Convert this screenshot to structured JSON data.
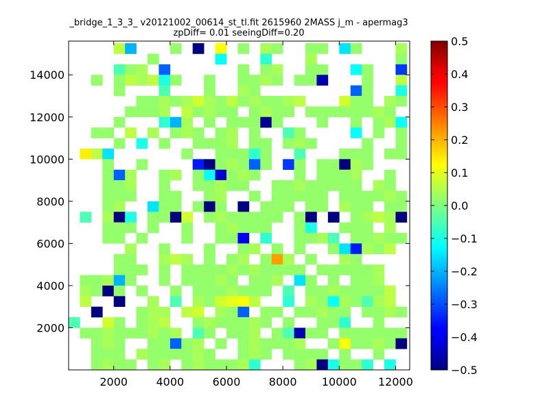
{
  "chart_data": {
    "type": "heatmap",
    "title": "_bridge_1_3_3_ v20121002_00614_st_tl.fit 2615960 2MASS j_m - apermag3",
    "subtitle": "zpDiff= 0.01 seeingDiff=0.20",
    "xlabel": "",
    "ylabel": "",
    "xlim": [
      400,
      12500
    ],
    "ylim": [
      0,
      15600
    ],
    "xticks": [
      2000,
      4000,
      6000,
      8000,
      10000,
      12000
    ],
    "yticks": [
      2000,
      4000,
      6000,
      8000,
      10000,
      12000,
      14000
    ],
    "x_bin_edges": [
      400,
      800,
      1200,
      1600,
      2000,
      2400,
      2800,
      3200,
      3600,
      4000,
      4400,
      4800,
      5200,
      5600,
      6000,
      6400,
      6800,
      7200,
      7600,
      8000,
      8400,
      8800,
      9200,
      9600,
      10000,
      10400,
      10800,
      11200,
      11600,
      12000,
      12400
    ],
    "y_bin_edges": [
      0,
      500,
      1000,
      1500,
      2000,
      2500,
      3000,
      3500,
      4000,
      4500,
      5000,
      5500,
      6000,
      6500,
      7000,
      7500,
      8000,
      8500,
      9000,
      9500,
      10000,
      10500,
      11000,
      11500,
      12000,
      12500,
      13000,
      13500,
      14000,
      14500,
      15000,
      15500
    ],
    "colorbar": {
      "colormap": "jet",
      "vmin": -0.5,
      "vmax": 0.5,
      "ticks": [
        -0.5,
        -0.4,
        -0.3,
        -0.2,
        -0.1,
        0.0,
        0.1,
        0.2,
        0.3,
        0.4,
        0.5
      ],
      "tick_labels": [
        "−0.5",
        "−0.4",
        "−0.3",
        "−0.2",
        "−0.1",
        "0.0",
        "0.1",
        "0.2",
        "0.3",
        "0.4",
        "0.5"
      ]
    },
    "x_tick_labels": [
      "2000",
      "4000",
      "6000",
      "8000",
      "10000",
      "12000"
    ],
    "y_tick_labels": [
      "2000",
      "4000",
      "6000",
      "8000",
      "10000",
      "12000",
      "14000"
    ],
    "grid_rows_note": "rows listed from top (y=15500) to bottom (y=0); 31 columns from x=400 to 12400; null = no data",
    "grid": [
      [
        null,
        null,
        null,
        0.02,
        null,
        null,
        null,
        0.04,
        null,
        null,
        null,
        null,
        0.02,
        null,
        null,
        0.04,
        null,
        null,
        0.02,
        null,
        null,
        0.02,
        null,
        null,
        -0.05,
        null,
        0.02,
        null,
        null,
        0.04,
        null
      ],
      [
        null,
        null,
        null,
        null,
        0.06,
        -0.2,
        null,
        null,
        null,
        0.02,
        null,
        -0.5,
        null,
        0.12,
        null,
        0.02,
        null,
        0.04,
        0.02,
        null,
        null,
        0.02,
        0.02,
        null,
        -0.15,
        0.02,
        null,
        null,
        null,
        0.04,
        0.06
      ],
      [
        null,
        null,
        null,
        null,
        null,
        null,
        null,
        0.02,
        null,
        null,
        null,
        null,
        null,
        -0.12,
        null,
        null,
        null,
        -0.08,
        null,
        null,
        null,
        0.04,
        null,
        null,
        null,
        null,
        null,
        null,
        null,
        0.02,
        null
      ],
      [
        null,
        null,
        null,
        null,
        -0.05,
        0.02,
        0.04,
        null,
        -0.28,
        null,
        null,
        null,
        null,
        null,
        null,
        0.02,
        null,
        0.02,
        0.04,
        null,
        null,
        0.02,
        0.02,
        null,
        null,
        -0.12,
        0.02,
        null,
        null,
        -0.32,
        null
      ],
      [
        null,
        null,
        0.02,
        null,
        0.02,
        0.06,
        0.04,
        0.06,
        -0.1,
        0.02,
        null,
        null,
        0.02,
        null,
        null,
        0.02,
        0.02,
        0.04,
        0.02,
        null,
        0.02,
        0.02,
        -0.45,
        null,
        null,
        null,
        0.02,
        null,
        null,
        0.06,
        null
      ],
      [
        null,
        null,
        null,
        null,
        0.02,
        null,
        null,
        null,
        -0.05,
        null,
        null,
        null,
        0.02,
        null,
        null,
        0.04,
        0.02,
        null,
        null,
        null,
        null,
        null,
        null,
        null,
        null,
        -0.28,
        0.02,
        null,
        null,
        -0.1,
        null
      ],
      [
        null,
        null,
        null,
        null,
        null,
        null,
        0.02,
        0.02,
        0.04,
        0.02,
        0.04,
        0.08,
        0.04,
        0.02,
        0.06,
        0.02,
        0.04,
        0.02,
        0.02,
        0.04,
        0.06,
        null,
        null,
        null,
        0.08,
        0.02,
        0.02,
        null,
        0.04,
        0.02,
        null
      ],
      [
        null,
        null,
        null,
        null,
        null,
        0.02,
        0.02,
        0.02,
        0.04,
        null,
        0.06,
        0.02,
        0.04,
        0.02,
        0.02,
        null,
        0.02,
        0.04,
        0.02,
        0.02,
        null,
        0.02,
        0.02,
        0.02,
        0.02,
        0.02,
        0.02,
        0.04,
        0.02,
        null,
        null
      ],
      [
        null,
        null,
        null,
        null,
        0.02,
        null,
        null,
        null,
        -0.08,
        -0.2,
        0.04,
        null,
        0.02,
        null,
        0.02,
        0.02,
        0.02,
        -0.48,
        0.02,
        null,
        null,
        null,
        0.02,
        null,
        null,
        0.02,
        null,
        0.02,
        0.04,
        -0.12,
        -0.5
      ],
      [
        null,
        null,
        0.02,
        0.02,
        null,
        0.06,
        null,
        0.04,
        null,
        0.02,
        0.04,
        0.02,
        null,
        0.02,
        0.04,
        null,
        0.02,
        null,
        null,
        -0.05,
        0.02,
        null,
        null,
        null,
        null,
        -0.12,
        null,
        0.02,
        null,
        0.02,
        null
      ],
      [
        null,
        null,
        null,
        null,
        0.02,
        null,
        -0.1,
        null,
        0.02,
        null,
        null,
        0.02,
        0.02,
        0.02,
        0.04,
        null,
        0.02,
        0.02,
        null,
        0.02,
        0.04,
        0.02,
        null,
        null,
        null,
        null,
        0.02,
        null,
        null,
        0.02,
        null
      ],
      [
        null,
        0.14,
        0.06,
        -0.15,
        null,
        null,
        null,
        null,
        null,
        null,
        0.02,
        null,
        null,
        0.02,
        0.02,
        0.02,
        -0.08,
        0.02,
        null,
        null,
        -0.05,
        null,
        null,
        null,
        0.02,
        0.02,
        0.02,
        null,
        0.02,
        0.02,
        null
      ],
      [
        null,
        null,
        null,
        0.02,
        null,
        null,
        0.02,
        null,
        null,
        null,
        null,
        -0.35,
        -0.5,
        0.02,
        0.04,
        0.02,
        -0.28,
        0.02,
        null,
        -0.32,
        0.02,
        null,
        0.02,
        0.02,
        -0.5,
        0.04,
        0.02,
        null,
        null,
        null,
        -0.05
      ],
      [
        null,
        null,
        null,
        0.02,
        -0.28,
        0.04,
        null,
        null,
        0.02,
        0.04,
        null,
        0.02,
        -0.12,
        -0.42,
        0.02,
        0.04,
        0.02,
        null,
        null,
        null,
        0.02,
        null,
        0.02,
        0.02,
        0.02,
        0.04,
        null,
        null,
        0.02,
        null,
        null
      ],
      [
        null,
        null,
        null,
        0.02,
        0.02,
        0.04,
        null,
        null,
        0.02,
        null,
        null,
        0.02,
        0.02,
        0.04,
        0.02,
        0.02,
        null,
        null,
        0.02,
        0.02,
        0.04,
        0.02,
        0.02,
        0.02,
        0.02,
        0.02,
        null,
        0.04,
        0.02,
        null,
        null
      ],
      [
        null,
        null,
        null,
        0.02,
        0.02,
        0.02,
        null,
        null,
        0.02,
        0.02,
        null,
        null,
        0.02,
        0.04,
        null,
        null,
        0.02,
        null,
        0.02,
        0.02,
        0.02,
        0.02,
        0.02,
        null,
        0.02,
        0.02,
        0.02,
        0.02,
        0.04,
        0.02,
        null
      ],
      [
        null,
        null,
        null,
        0.02,
        0.04,
        null,
        null,
        -0.15,
        0.02,
        0.02,
        null,
        0.02,
        -0.5,
        0.02,
        null,
        -0.5,
        null,
        0.02,
        0.02,
        0.02,
        null,
        0.02,
        0.02,
        null,
        0.04,
        0.02,
        0.02,
        null,
        0.02,
        0.02,
        -0.05
      ],
      [
        null,
        -0.05,
        null,
        0.04,
        -0.5,
        -0.1,
        null,
        0.02,
        0.02,
        -0.5,
        0.08,
        null,
        0.02,
        0.04,
        0.02,
        0.02,
        0.02,
        0.02,
        0.02,
        null,
        0.02,
        -0.5,
        null,
        -0.5,
        null,
        0.02,
        0.04,
        0.06,
        0.04,
        -0.5,
        null
      ],
      [
        null,
        null,
        null,
        0.02,
        0.02,
        0.02,
        null,
        0.02,
        null,
        null,
        0.02,
        null,
        null,
        0.02,
        0.04,
        0.02,
        0.02,
        0.02,
        null,
        null,
        0.02,
        -0.1,
        null,
        null,
        0.02,
        0.02,
        0.02,
        null,
        0.04,
        null,
        null
      ],
      [
        null,
        null,
        null,
        0.02,
        0.02,
        null,
        0.02,
        null,
        null,
        null,
        0.02,
        null,
        null,
        0.02,
        0.02,
        -0.38,
        null,
        -0.08,
        null,
        null,
        0.02,
        0.02,
        0.04,
        -0.05,
        null,
        0.02,
        0.02,
        0.04,
        0.02,
        0.02,
        null
      ],
      [
        null,
        null,
        null,
        null,
        null,
        0.04,
        null,
        null,
        0.02,
        null,
        null,
        null,
        0.02,
        null,
        null,
        0.02,
        0.04,
        null,
        0.02,
        null,
        0.02,
        null,
        null,
        0.02,
        -0.15,
        -0.35,
        0.04,
        0.02,
        0.06,
        null,
        -0.5
      ],
      [
        null,
        null,
        null,
        null,
        0.02,
        0.02,
        null,
        null,
        0.04,
        0.06,
        0.04,
        null,
        0.02,
        null,
        0.02,
        0.04,
        null,
        0.02,
        0.22,
        0.04,
        null,
        0.02,
        null,
        null,
        0.04,
        0.02,
        null,
        null,
        null,
        null,
        null
      ],
      [
        null,
        null,
        null,
        null,
        0.02,
        0.02,
        0.02,
        null,
        0.02,
        null,
        0.02,
        0.02,
        0.02,
        0.02,
        0.04,
        0.02,
        0.04,
        0.02,
        0.02,
        0.02,
        0.02,
        null,
        0.02,
        0.02,
        0.02,
        0.02,
        0.02,
        0.04,
        null,
        null,
        null
      ],
      [
        null,
        0.02,
        0.02,
        0.04,
        -0.2,
        0.02,
        null,
        null,
        0.02,
        null,
        0.02,
        0.02,
        0.02,
        0.04,
        0.02,
        null,
        0.02,
        0.02,
        0.04,
        null,
        -0.15,
        0.02,
        null,
        0.02,
        null,
        0.02,
        0.02,
        0.04,
        null,
        null,
        null
      ],
      [
        null,
        0.04,
        0.02,
        -0.5,
        0.02,
        null,
        0.02,
        null,
        null,
        0.02,
        null,
        0.02,
        0.02,
        0.02,
        0.04,
        0.02,
        0.02,
        0.02,
        null,
        -0.05,
        null,
        0.02,
        0.02,
        0.04,
        0.02,
        0.02,
        0.02,
        0.02,
        0.06,
        null,
        null
      ],
      [
        null,
        0.06,
        null,
        null,
        -0.5,
        null,
        null,
        0.04,
        null,
        -0.05,
        null,
        0.04,
        0.02,
        0.08,
        0.1,
        0.12,
        0.06,
        null,
        null,
        -0.08,
        null,
        0.04,
        0.02,
        -0.12,
        0.04,
        0.02,
        -0.05,
        0.04,
        0.06,
        null,
        null
      ],
      [
        null,
        null,
        -0.5,
        null,
        null,
        null,
        0.02,
        0.04,
        0.04,
        null,
        0.06,
        0.08,
        null,
        0.04,
        0.02,
        -0.28,
        null,
        0.02,
        0.02,
        null,
        0.02,
        0.02,
        0.04,
        0.02,
        0.02,
        null,
        0.02,
        0.02,
        0.04,
        0.02,
        null
      ],
      [
        -0.05,
        null,
        null,
        0.08,
        0.02,
        null,
        0.02,
        0.04,
        0.06,
        null,
        null,
        0.02,
        0.04,
        0.02,
        0.02,
        0.02,
        0.04,
        0.02,
        null,
        0.02,
        null,
        null,
        0.02,
        0.02,
        -0.08,
        null,
        null,
        0.02,
        null,
        null,
        null
      ],
      [
        null,
        0.02,
        0.02,
        0.04,
        0.02,
        0.02,
        0.02,
        0.04,
        0.02,
        0.04,
        null,
        -0.05,
        0.02,
        null,
        0.02,
        0.02,
        0.04,
        null,
        0.02,
        -0.05,
        -0.45,
        0.02,
        0.02,
        null,
        0.02,
        0.02,
        0.02,
        0.02,
        0.02,
        0.02,
        -0.5
      ],
      [
        null,
        null,
        0.02,
        0.04,
        0.02,
        null,
        null,
        0.02,
        0.02,
        -0.28,
        0.02,
        0.04,
        null,
        0.02,
        null,
        0.02,
        0.04,
        0.02,
        0.02,
        0.02,
        0.04,
        null,
        null,
        0.02,
        0.12,
        0.02,
        0.02,
        0.04,
        0.02,
        -0.5,
        null
      ],
      [
        null,
        null,
        0.02,
        0.02,
        0.02,
        null,
        0.04,
        0.02,
        0.02,
        0.02,
        0.02,
        0.04,
        0.02,
        null,
        null,
        0.02,
        0.04,
        0.02,
        null,
        0.02,
        0.02,
        0.02,
        0.02,
        null,
        0.02,
        null,
        null,
        0.02,
        null,
        null,
        null
      ],
      [
        null,
        null,
        0.02,
        0.04,
        0.02,
        0.02,
        null,
        0.02,
        0.04,
        null,
        0.02,
        0.04,
        0.02,
        0.02,
        0.02,
        0.04,
        -0.08,
        null,
        null,
        null,
        0.02,
        0.04,
        -0.5,
        -0.1,
        0.02,
        0.02,
        -0.08,
        null,
        -0.1,
        null,
        null
      ]
    ]
  },
  "colors": {
    "background": "#ffffff",
    "axes_edge": "#000000",
    "text": "#000000"
  }
}
